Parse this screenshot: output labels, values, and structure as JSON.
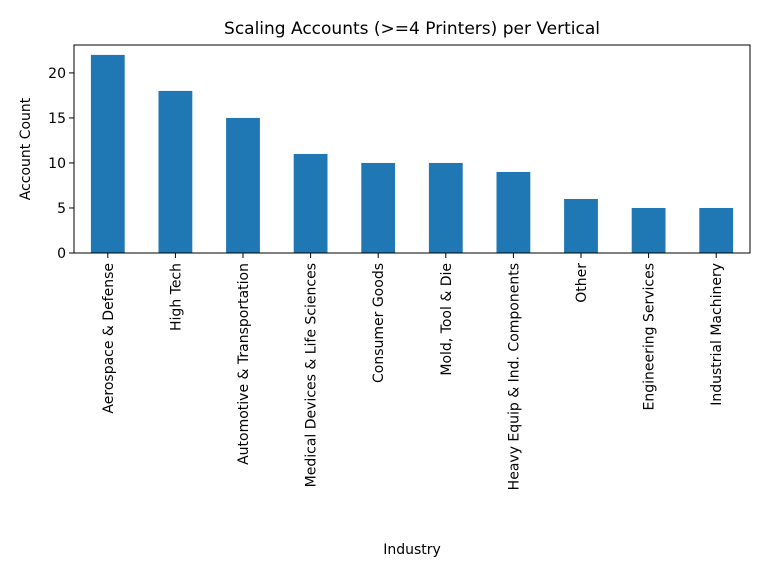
{
  "chart_data": {
    "type": "bar",
    "title": "Scaling Accounts (>=4 Printers) per Vertical",
    "xlabel": "Industry",
    "ylabel": "Account Count",
    "categories": [
      "Aerospace & Defense",
      "High Tech",
      "Automotive & Transportation",
      "Medical Devices & Life Sciences",
      "Consumer Goods",
      "Mold, Tool & Die",
      "Heavy Equip & Ind. Components",
      "Other",
      "Engineering Services",
      "Industrial Machinery"
    ],
    "values": [
      22,
      18,
      15,
      11,
      10,
      10,
      9,
      6,
      5,
      5
    ],
    "ylim": [
      0,
      23.1
    ],
    "yticks": [
      0,
      5,
      10,
      15,
      20
    ],
    "grid": false,
    "bar_color": "#1f77b4"
  }
}
